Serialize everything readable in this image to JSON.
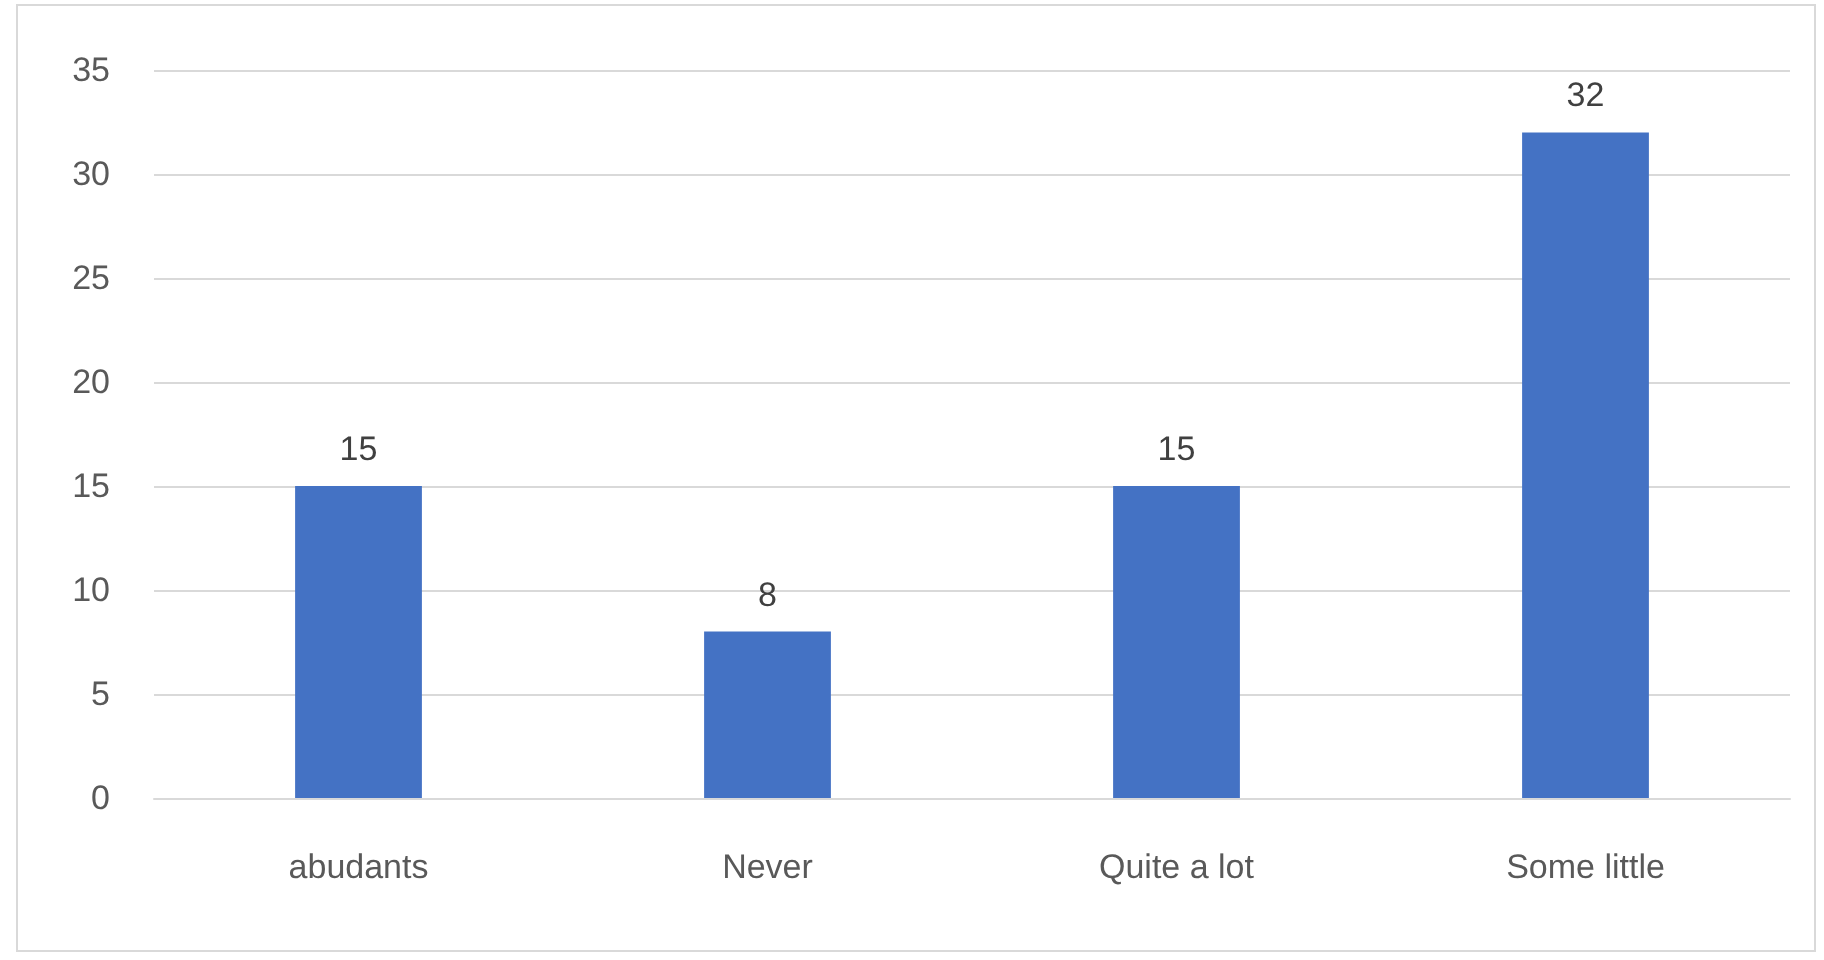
{
  "chart_data": {
    "type": "bar",
    "categories": [
      "abudants",
      "Never",
      "Quite a lot",
      "Some little"
    ],
    "values": [
      15,
      8,
      15,
      32
    ],
    "color": "#4472c4",
    "ylim": [
      0,
      35
    ],
    "yticks": [
      0,
      5,
      10,
      15,
      20,
      25,
      30,
      35
    ],
    "grid": "y",
    "data_labels": true
  }
}
